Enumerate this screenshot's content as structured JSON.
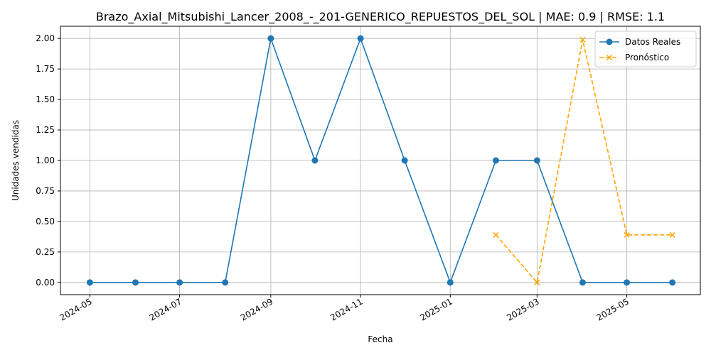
{
  "chart_data": {
    "type": "line",
    "title": "Brazo_Axial_Mitsubishi_Lancer_2008_-_201-GENERICO_REPUESTOS_DEL_SOL | MAE: 0.9 | RMSE: 1.1",
    "xlabel": "Fecha",
    "ylabel": "Unidades vendidas",
    "x_ticks": [
      "2024-05",
      "2024-07",
      "2024-09",
      "2024-11",
      "2025-01",
      "2025-03",
      "2025-05"
    ],
    "y_ticks": [
      "0.00",
      "0.25",
      "0.50",
      "0.75",
      "1.00",
      "1.25",
      "1.50",
      "1.75",
      "2.00"
    ],
    "ylim": [
      -0.1,
      2.1
    ],
    "xlim": [
      "2024-04-11",
      "2025-06-20"
    ],
    "grid": true,
    "legend_position": "top-right",
    "series": [
      {
        "name": "Datos Reales",
        "color": "#1f77b4",
        "style": "solid",
        "marker": "circle",
        "x": [
          "2024-05-01",
          "2024-06-01",
          "2024-07-01",
          "2024-08-01",
          "2024-09-01",
          "2024-10-01",
          "2024-11-01",
          "2024-12-01",
          "2025-01-01",
          "2025-02-01",
          "2025-03-01",
          "2025-04-01",
          "2025-05-01",
          "2025-06-01"
        ],
        "values": [
          0,
          0,
          0,
          0,
          2,
          1,
          2,
          1,
          0,
          1,
          1,
          0,
          0,
          0
        ]
      },
      {
        "name": "Pronóstico",
        "color": "#ffa500",
        "style": "dashed",
        "marker": "x",
        "x": [
          "2025-02-01",
          "2025-03-01",
          "2025-04-01",
          "2025-05-01",
          "2025-06-01"
        ],
        "values": [
          0.39,
          0.0,
          1.99,
          0.39,
          0.39
        ]
      }
    ]
  }
}
